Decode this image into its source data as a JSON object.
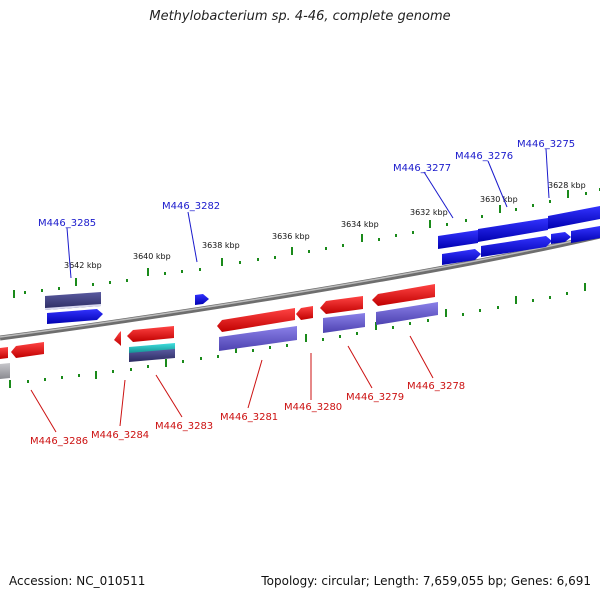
{
  "title": "Methylobacterium sp. 4-46, complete genome",
  "footer": {
    "accession": "Accession: NC_010511",
    "summary": "Topology: circular; Length: 7,659,055 bp; Genes: 6,691"
  },
  "scale_labels": [
    "3642 kbp",
    "3640 kbp",
    "3638 kbp",
    "3636 kbp",
    "3634 kbp",
    "3632 kbp",
    "3630 kbp",
    "3628 kbp"
  ],
  "forward_gene_labels": [
    "M446_3285",
    "M446_3282",
    "M446_3277",
    "M446_3276",
    "M446_3275"
  ],
  "reverse_gene_labels": [
    "M446_3286",
    "M446_3284",
    "M446_3283",
    "M446_3281",
    "M446_3280",
    "M446_3279",
    "M446_3278"
  ],
  "colors": {
    "forward_gene": "#1010e8",
    "reverse_gene": "#ee1010",
    "forward_label": "#1a1acc",
    "reverse_label": "#cc1111",
    "forward_cds": "#3a3a80",
    "reverse_cds": "#6b5fd0",
    "rna": "#1ab5b5",
    "backbone": "#8a8a8a",
    "ticks": "#2a9a2a"
  }
}
